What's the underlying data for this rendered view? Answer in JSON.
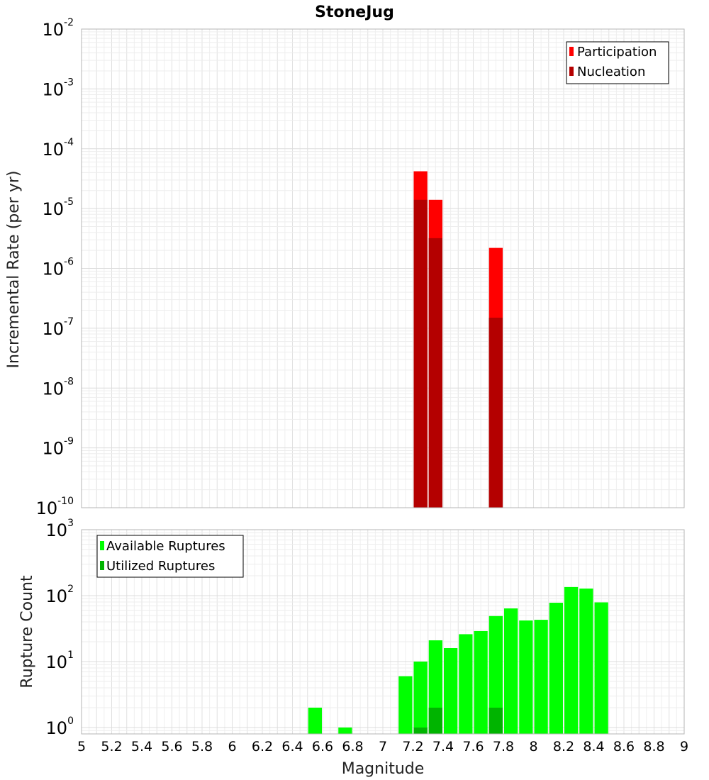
{
  "chart_data": [
    {
      "type": "bar",
      "title": "StoneJug",
      "xlabel": "",
      "ylabel": "Incremental Rate (per yr)",
      "yscale": "log",
      "ylim": [
        1e-10,
        0.01
      ],
      "xlim": [
        5,
        9
      ],
      "bin_width": 0.1,
      "y_ticks": [
        {
          "base": "10",
          "exp": "-10"
        },
        {
          "base": "10",
          "exp": "-9"
        },
        {
          "base": "10",
          "exp": "-8"
        },
        {
          "base": "10",
          "exp": "-7"
        },
        {
          "base": "10",
          "exp": "-6"
        },
        {
          "base": "10",
          "exp": "-5"
        },
        {
          "base": "10",
          "exp": "-4"
        },
        {
          "base": "10",
          "exp": "-3"
        },
        {
          "base": "10",
          "exp": "-2"
        }
      ],
      "grid": true,
      "legend_position": "top-right",
      "series": [
        {
          "name": "Participation",
          "color": "#ff0000",
          "points": [
            {
              "x": 7.25,
              "y": 4.2e-05
            },
            {
              "x": 7.35,
              "y": 1.4e-05
            },
            {
              "x": 7.75,
              "y": 2.2e-06
            }
          ]
        },
        {
          "name": "Nucleation",
          "color": "#b40000",
          "points": [
            {
              "x": 7.25,
              "y": 1.4e-05
            },
            {
              "x": 7.35,
              "y": 3.2e-06
            },
            {
              "x": 7.75,
              "y": 1.5e-07
            }
          ]
        }
      ]
    },
    {
      "type": "bar",
      "title": "",
      "xlabel": "Magnitude",
      "ylabel": "Rupture Count",
      "yscale": "log",
      "ylim": [
        0.8,
        1000
      ],
      "xlim": [
        5,
        9
      ],
      "bin_width": 0.1,
      "x_ticks": [
        "5",
        "5.2",
        "5.4",
        "5.6",
        "5.8",
        "6",
        "6.2",
        "6.4",
        "6.6",
        "6.8",
        "7",
        "7.2",
        "7.4",
        "7.6",
        "7.8",
        "8",
        "8.2",
        "8.4",
        "8.6",
        "8.8",
        "9"
      ],
      "y_ticks": [
        {
          "base": "10",
          "exp": "0"
        },
        {
          "base": "10",
          "exp": "1"
        },
        {
          "base": "10",
          "exp": "2"
        },
        {
          "base": "10",
          "exp": "3"
        }
      ],
      "grid": true,
      "legend_position": "top-left",
      "series": [
        {
          "name": "Available Ruptures",
          "color": "#00ff00",
          "points": [
            {
              "x": 6.55,
              "y": 2
            },
            {
              "x": 6.75,
              "y": 1
            },
            {
              "x": 7.15,
              "y": 6
            },
            {
              "x": 7.25,
              "y": 10
            },
            {
              "x": 7.35,
              "y": 21
            },
            {
              "x": 7.45,
              "y": 16
            },
            {
              "x": 7.55,
              "y": 26
            },
            {
              "x": 7.65,
              "y": 29
            },
            {
              "x": 7.75,
              "y": 49
            },
            {
              "x": 7.85,
              "y": 64
            },
            {
              "x": 7.95,
              "y": 42
            },
            {
              "x": 8.05,
              "y": 43
            },
            {
              "x": 8.15,
              "y": 78
            },
            {
              "x": 8.25,
              "y": 135
            },
            {
              "x": 8.35,
              "y": 128
            },
            {
              "x": 8.45,
              "y": 79
            }
          ]
        },
        {
          "name": "Utilized Ruptures",
          "color": "#00b400",
          "points": [
            {
              "x": 7.25,
              "y": 1
            },
            {
              "x": 7.35,
              "y": 2
            },
            {
              "x": 7.75,
              "y": 2
            }
          ]
        }
      ]
    }
  ]
}
